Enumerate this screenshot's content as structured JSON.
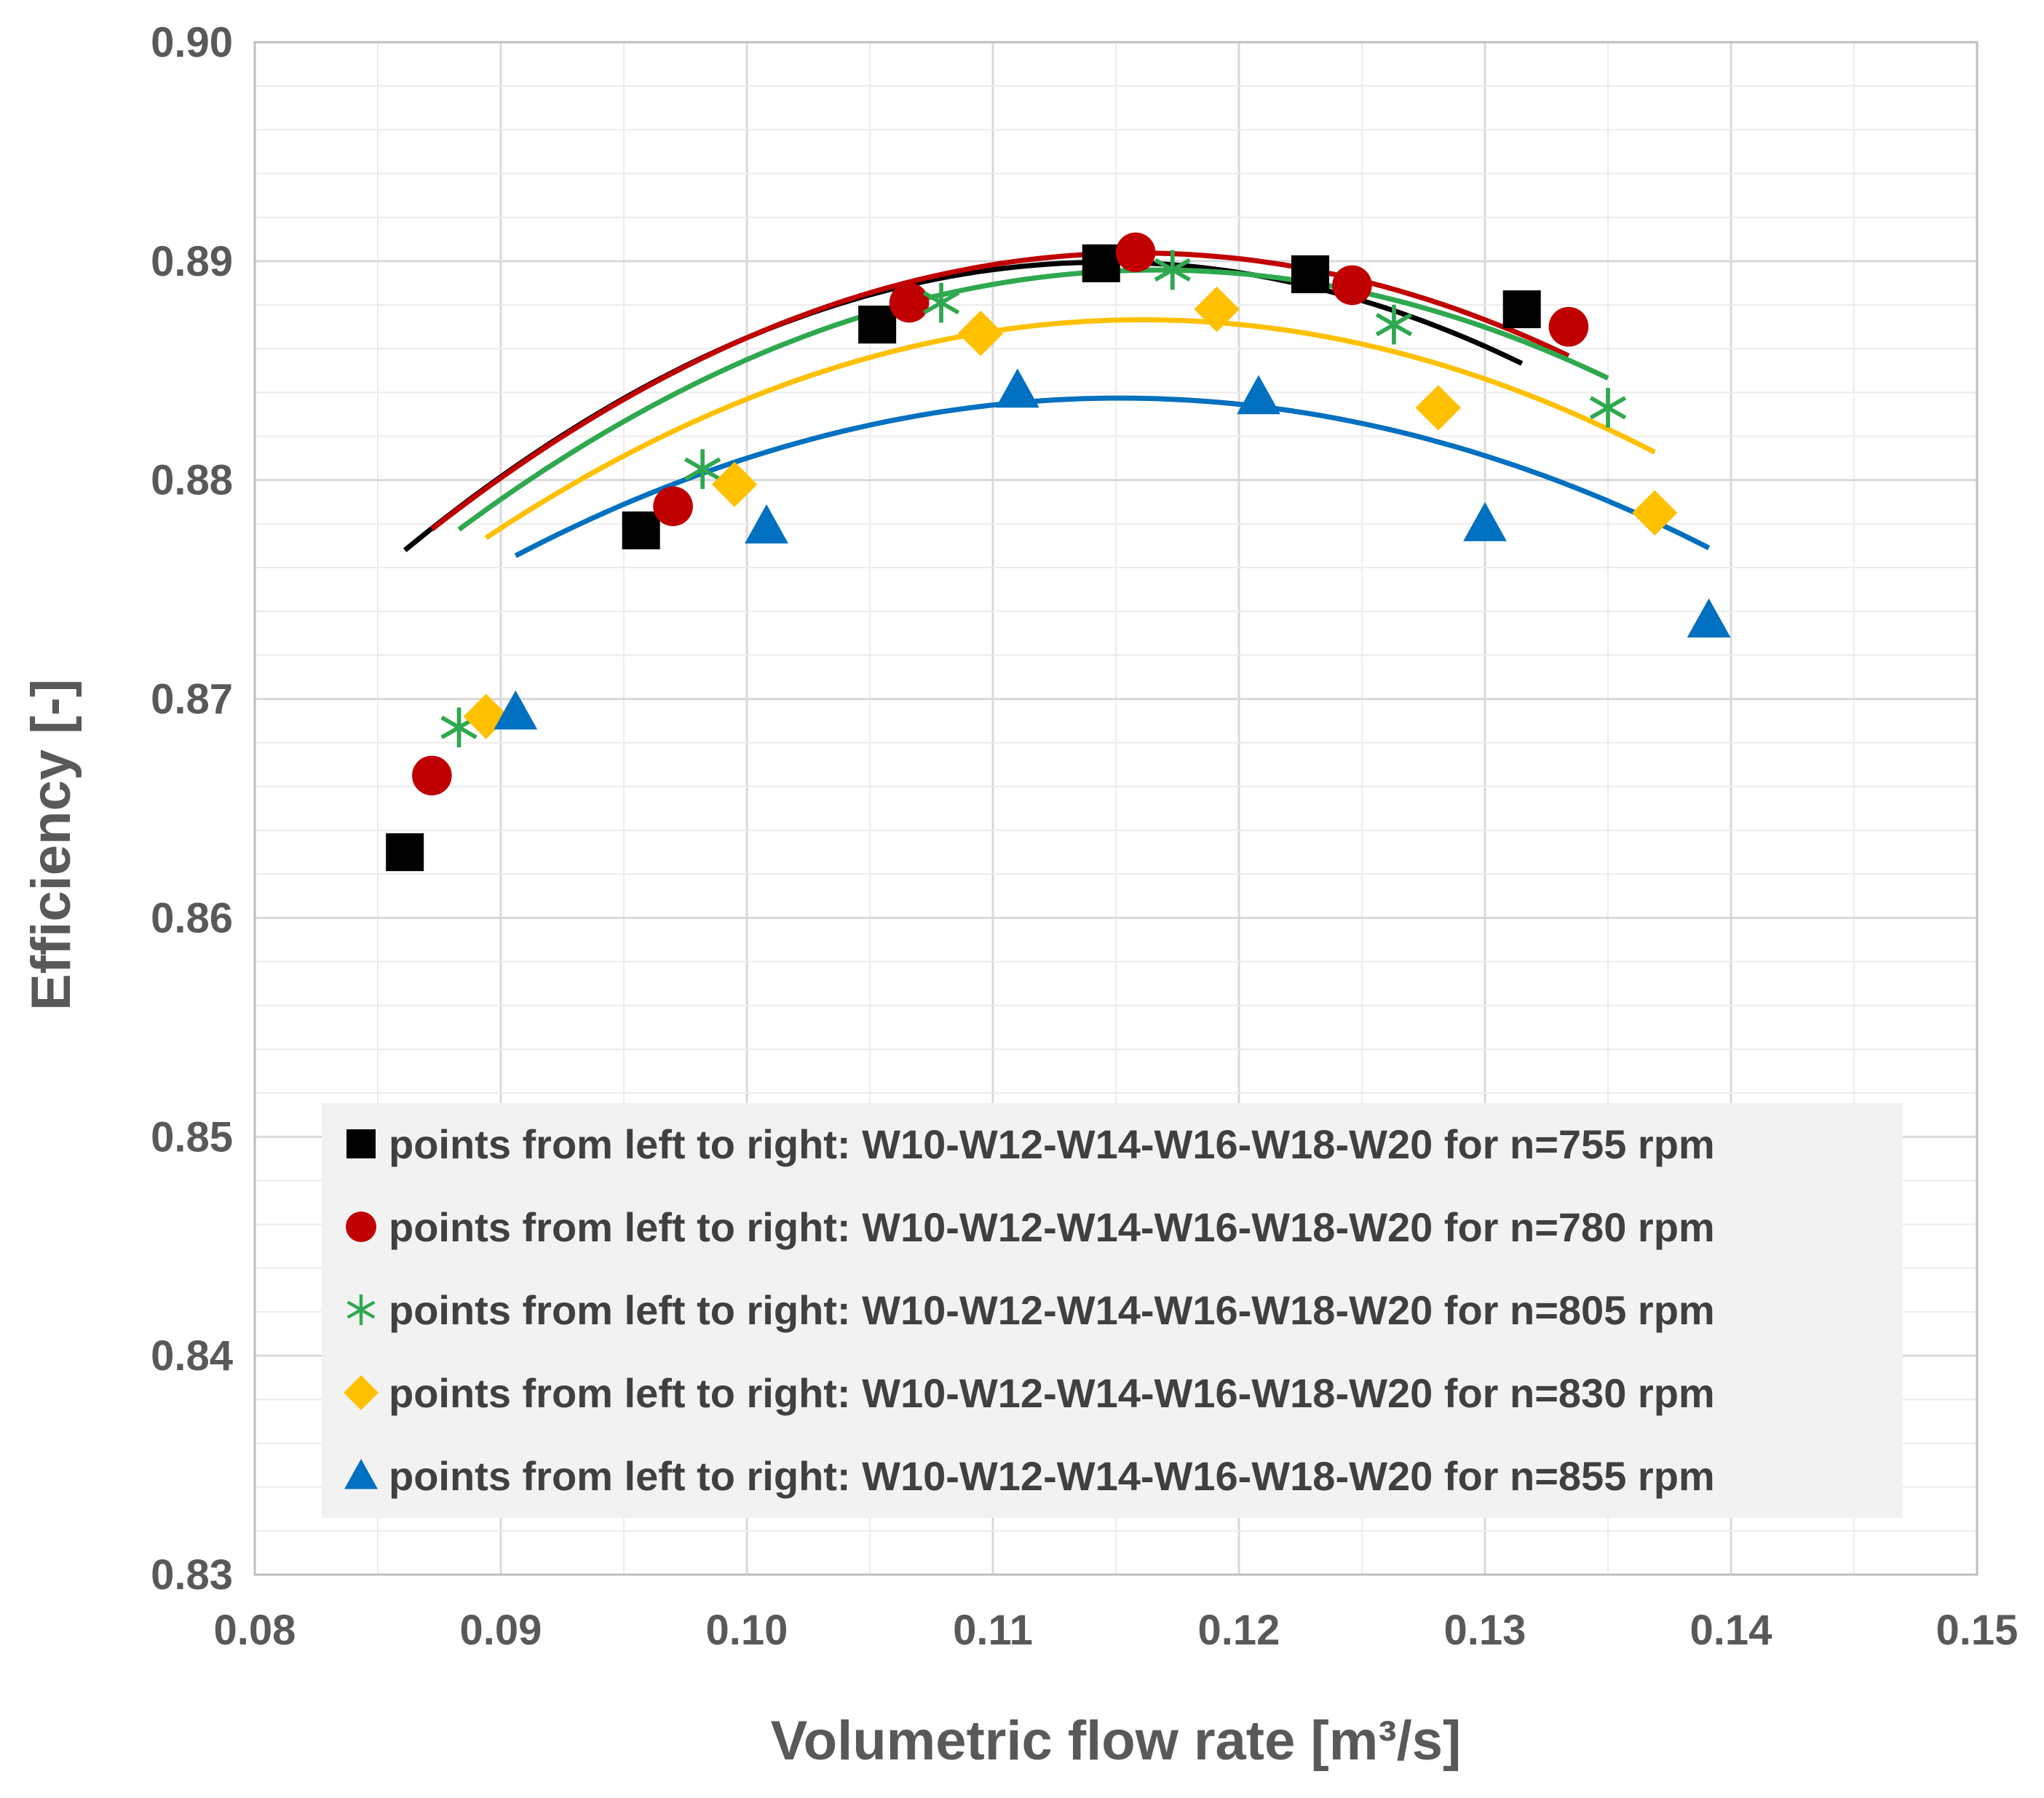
{
  "chart_data": {
    "type": "scatter",
    "title": "",
    "xlabel": "Volumetric flow rate [m³/s]",
    "ylabel": "Efficiency [-]",
    "xlim": [
      0.08,
      0.15
    ],
    "ylim": [
      0.83,
      0.9
    ],
    "x_ticks": [
      "0.08",
      "0.09",
      "0.10",
      "0.11",
      "0.12",
      "0.13",
      "0.14",
      "0.15"
    ],
    "y_ticks": [
      "0.83",
      "0.84",
      "0.85",
      "0.86",
      "0.87",
      "0.88",
      "0.89",
      "0.90"
    ],
    "grid": true,
    "legend_position": "bottom-center",
    "series": [
      {
        "name": "points from left to right: W10-W12-W14-W16-W18-W20 for n=755 rpm",
        "marker": "square",
        "color": "#000000",
        "x": [
          0.0861,
          0.0957,
          0.1053,
          0.1144,
          0.1229,
          0.1315
        ],
        "y": [
          0.863,
          0.8777,
          0.8871,
          0.8899,
          0.8894,
          0.8878
        ],
        "fit": [
          -16.2,
          3.713,
          0.6772
        ]
      },
      {
        "name": "points from left to right: W10-W12-W14-W16-W18-W20 for n=780 rpm",
        "marker": "circle",
        "color": "#C00000",
        "x": [
          0.0872,
          0.097,
          0.1066,
          0.1158,
          0.1246,
          0.1334
        ],
        "y": [
          0.8665,
          0.8788,
          0.8881,
          0.8904,
          0.8889,
          0.887
        ],
        "fit": [
          -15.32,
          3.551,
          0.6846
        ]
      },
      {
        "name": "points from left to right: W10-W12-W14-W16-W18-W20 for n=805 rpm",
        "marker": "asterisk",
        "color": "#2FA84F",
        "x": [
          0.0883,
          0.0982,
          0.1079,
          0.1173,
          0.1263,
          0.135
        ],
        "y": [
          0.8687,
          0.8805,
          0.8881,
          0.8896,
          0.8871,
          0.8833
        ],
        "fit": [
          -14.72,
          3.435,
          0.6892
        ]
      },
      {
        "name": "points from left to right: W10-W12-W14-W16-W18-W20 for n=830 rpm",
        "marker": "diamond",
        "color": "#FFC000",
        "x": [
          0.0894,
          0.0995,
          0.1095,
          0.1191,
          0.1281,
          0.1369
        ],
        "y": [
          0.8692,
          0.8798,
          0.8867,
          0.8878,
          0.8833,
          0.8785
        ],
        "fit": [
          -13.98,
          3.246,
          0.6989
        ]
      },
      {
        "name": "points from left to right: W10-W12-W14-W16-W18-W20 for n=855 rpm",
        "marker": "triangle",
        "color": "#0070C0",
        "x": [
          0.0906,
          0.1008,
          0.111,
          0.1208,
          0.13,
          0.1391
        ],
        "y": [
          0.8694,
          0.8779,
          0.8841,
          0.8838,
          0.878,
          0.8736
        ],
        "fit": [
          -11.94,
          2.75,
          0.7254
        ]
      }
    ]
  }
}
